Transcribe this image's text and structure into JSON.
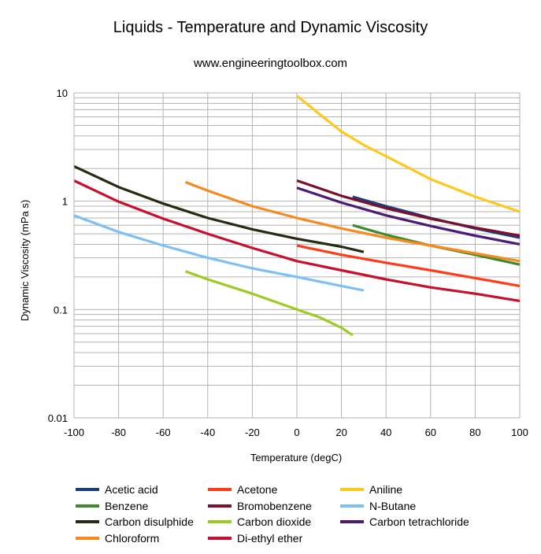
{
  "chart_data": {
    "type": "line",
    "title": "Liquids - Temperature and Dynamic Viscosity",
    "subtitle": "www.engineeringtoolbox.com",
    "xlabel": "Temperature (degC)",
    "ylabel": "Dynamic Viscosity (mPa s)",
    "xlim": [
      -100,
      100
    ],
    "ylim": [
      0.01,
      10
    ],
    "yscale": "log",
    "grid": true,
    "legend_position": "bottom",
    "x_ticks": [
      "-100",
      "-80",
      "-60",
      "-40",
      "-20",
      "0",
      "20",
      "40",
      "60",
      "80",
      "100"
    ],
    "y_ticks": [
      "0.01",
      "0.1",
      "1",
      "10"
    ],
    "series": [
      {
        "name": "Acetic acid",
        "color": "#1a3d7c",
        "x": [
          25,
          40,
          60,
          80,
          100
        ],
        "y": [
          1.1,
          0.9,
          0.7,
          0.56,
          0.46
        ]
      },
      {
        "name": "Acetone",
        "color": "#ff3b1a",
        "x": [
          0,
          20,
          40,
          60,
          80,
          100
        ],
        "y": [
          0.39,
          0.32,
          0.27,
          0.23,
          0.195,
          0.165
        ]
      },
      {
        "name": "Aniline",
        "color": "#ffc81e",
        "x": [
          0,
          10,
          20,
          30,
          40,
          60,
          80,
          100
        ],
        "y": [
          9.4,
          6.4,
          4.4,
          3.3,
          2.6,
          1.6,
          1.1,
          0.8
        ]
      },
      {
        "name": "Benzene",
        "color": "#3e8b2d",
        "x": [
          25,
          40,
          60,
          80,
          100
        ],
        "y": [
          0.6,
          0.49,
          0.39,
          0.32,
          0.26
        ]
      },
      {
        "name": "Bromobenzene",
        "color": "#7b0f2c",
        "x": [
          0,
          20,
          40,
          60,
          80,
          100
        ],
        "y": [
          1.55,
          1.12,
          0.86,
          0.69,
          0.57,
          0.48
        ]
      },
      {
        "name": "N-Butane",
        "color": "#7ec0f5",
        "x": [
          -100,
          -80,
          -60,
          -40,
          -20,
          0,
          20,
          30
        ],
        "y": [
          0.74,
          0.52,
          0.39,
          0.3,
          0.24,
          0.2,
          0.165,
          0.15
        ]
      },
      {
        "name": "Carbon disulphide",
        "color": "#222d11",
        "x": [
          -100,
          -80,
          -60,
          -40,
          -20,
          0,
          20,
          30
        ],
        "y": [
          2.1,
          1.35,
          0.95,
          0.7,
          0.55,
          0.45,
          0.38,
          0.34
        ]
      },
      {
        "name": "Carbon dioxide",
        "color": "#9bcc26",
        "x": [
          -50,
          -40,
          -20,
          0,
          10,
          20,
          25
        ],
        "y": [
          0.225,
          0.19,
          0.14,
          0.1,
          0.085,
          0.068,
          0.058
        ]
      },
      {
        "name": "Carbon tetrachloride",
        "color": "#4c1b74",
        "x": [
          0,
          20,
          40,
          60,
          80,
          100
        ],
        "y": [
          1.33,
          0.97,
          0.74,
          0.59,
          0.48,
          0.4
        ]
      },
      {
        "name": "Chloroform",
        "color": "#f7891f",
        "x": [
          -50,
          -40,
          -20,
          0,
          20,
          40,
          60,
          80,
          100
        ],
        "y": [
          1.5,
          1.25,
          0.9,
          0.7,
          0.56,
          0.46,
          0.39,
          0.33,
          0.28
        ]
      },
      {
        "name": "Di-ethyl ether",
        "color": "#c8102e",
        "x": [
          -100,
          -80,
          -60,
          -40,
          -20,
          0,
          20,
          40,
          60,
          80,
          100
        ],
        "y": [
          1.55,
          0.99,
          0.69,
          0.5,
          0.37,
          0.28,
          0.23,
          0.19,
          0.16,
          0.14,
          0.12
        ]
      }
    ]
  }
}
